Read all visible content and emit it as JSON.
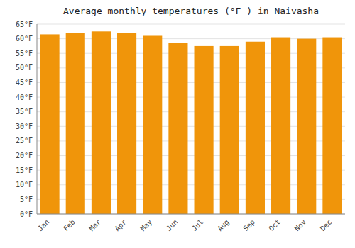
{
  "chart_data": {
    "type": "bar",
    "title": "Average monthly temperatures (°F ) in Naivasha",
    "categories": [
      "Jan",
      "Feb",
      "Mar",
      "Apr",
      "May",
      "Jun",
      "Jul",
      "Aug",
      "Sep",
      "Oct",
      "Nov",
      "Dec"
    ],
    "values": [
      61.5,
      62.0,
      62.5,
      62.0,
      61.0,
      58.5,
      57.5,
      57.5,
      59.0,
      60.5,
      60.0,
      60.5
    ],
    "color": "#F0950A",
    "ylim": [
      0,
      65
    ],
    "yticks": [
      {
        "value": 0,
        "label": "0°F"
      },
      {
        "value": 5,
        "label": "5°F"
      },
      {
        "value": 10,
        "label": "10°F"
      },
      {
        "value": 15,
        "label": "15°F"
      },
      {
        "value": 20,
        "label": "20°F"
      },
      {
        "value": 25,
        "label": "25°F"
      },
      {
        "value": 30,
        "label": "30°F"
      },
      {
        "value": 35,
        "label": "35°F"
      },
      {
        "value": 40,
        "label": "40°F"
      },
      {
        "value": 45,
        "label": "45°F"
      },
      {
        "value": 50,
        "label": "50°F"
      },
      {
        "value": 55,
        "label": "55°F"
      },
      {
        "value": 60,
        "label": "60°F"
      },
      {
        "value": 65,
        "label": "65°F"
      }
    ],
    "grid": true
  }
}
